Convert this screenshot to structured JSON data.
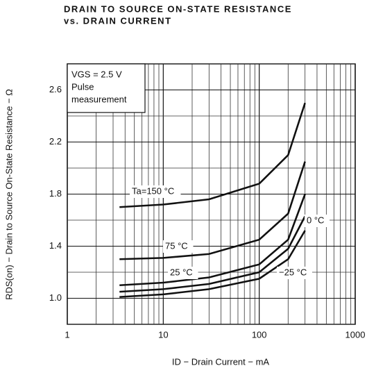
{
  "chart_data": {
    "type": "line",
    "title": "DRAIN TO SOURCE ON-STATE RESISTANCE",
    "subtitle": "vs. DRAIN CURRENT",
    "x_label": "ID − Drain Current − mA",
    "y_label": "RDS(on) − Drain to Source On-State Resistance − Ω",
    "annotations": [
      "VGS = 2.5 V",
      "Pulse",
      "measurement"
    ],
    "log_x": true,
    "grid": true,
    "xlim": [
      1,
      1000
    ],
    "xticks": [
      1,
      10,
      100,
      1000
    ],
    "ylim": [
      0.8,
      2.8
    ],
    "yticks": [
      {
        "value": 1,
        "label": "1.0"
      },
      1.4,
      1.8,
      2.2,
      2.6
    ],
    "yminor": [
      0.8,
      1.2,
      1.6,
      2.0,
      2.4,
      2.8
    ],
    "x": [
      3.5,
      10,
      30,
      100,
      200,
      300
    ],
    "series": [
      {
        "name": "Ta=150 °C",
        "color": "#111111",
        "values": [
          1.7,
          1.72,
          1.76,
          1.88,
          2.1,
          2.5
        ]
      },
      {
        "name": "75 °C",
        "color": "#111111",
        "values": [
          1.3,
          1.31,
          1.34,
          1.45,
          1.65,
          2.05
        ]
      },
      {
        "name": "25 °C",
        "color": "#111111",
        "values": [
          1.1,
          1.12,
          1.16,
          1.26,
          1.45,
          1.8
        ]
      },
      {
        "name": "0 °C",
        "color": "#111111",
        "values": [
          1.05,
          1.07,
          1.11,
          1.2,
          1.38,
          1.63
        ]
      },
      {
        "name": "−25 °C",
        "color": "#111111",
        "values": [
          1.01,
          1.03,
          1.07,
          1.15,
          1.3,
          1.52
        ]
      }
    ]
  }
}
